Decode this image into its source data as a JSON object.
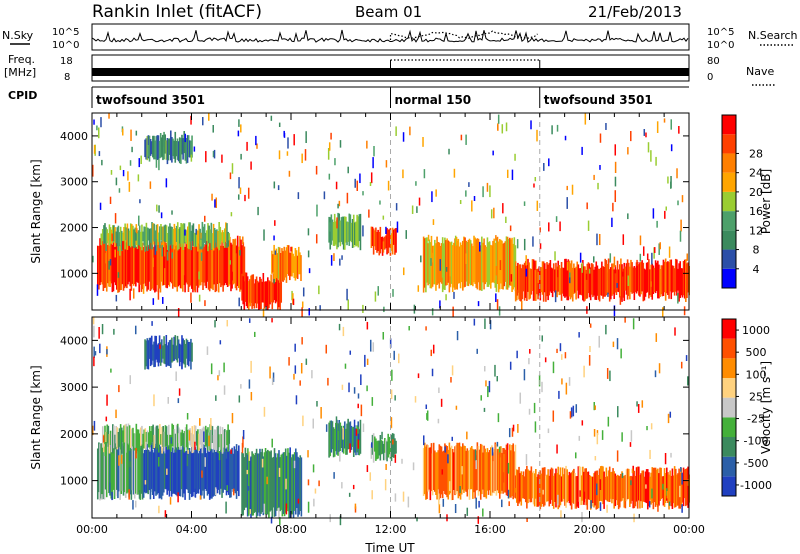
{
  "header": {
    "title": "Rankin Inlet (fitACF)",
    "beam": "Beam 01",
    "date": "21/Feb/2013"
  },
  "top_panels": {
    "nsky_label": "N.Sky",
    "nsearch_label": "N.Search",
    "noise_ticks": [
      "10^5",
      "10^0"
    ],
    "freq_label_1": "Freq.",
    "freq_label_2": "[MHz]",
    "freq_ticks": [
      "18",
      "8"
    ],
    "nave_label": "Nave",
    "nave_ticks": [
      "80",
      "0"
    ],
    "cpid_label": "CPID",
    "cpid_segments": [
      {
        "label": "twofsound 3501",
        "start": 0,
        "end": 12
      },
      {
        "label": "normal 150",
        "start": 12,
        "end": 18
      },
      {
        "label": "twofsound 3501",
        "start": 18,
        "end": 24
      }
    ]
  },
  "colors": {
    "power_scale": [
      "#0000ff",
      "#2b4fa8",
      "#3b8a5e",
      "#4da06a",
      "#9acd32",
      "#ffa500",
      "#ff7f00",
      "#ff4000",
      "#ff0000"
    ],
    "velocity_scale": [
      "#2040c0",
      "#2b5fa8",
      "#3b8a5e",
      "#44b03a",
      "#c8c8c8",
      "#ffd27f",
      "#ff8c00",
      "#ff5000",
      "#ff0000"
    ]
  },
  "chart_data": [
    {
      "type": "heatmap",
      "name": "power",
      "ylabel": "Slant Range [km]",
      "y_ticks": [
        "1000",
        "2000",
        "3000",
        "4000"
      ],
      "ylim": [
        200,
        4500
      ],
      "xlim": [
        0,
        24
      ],
      "colorbar_label": "Power [dB]",
      "colorbar_ticks": [
        "4",
        "8",
        "12",
        "16",
        "20",
        "24",
        "28"
      ],
      "regions": [
        {
          "t0": 0.2,
          "t1": 6.1,
          "r0": 700,
          "r1": 1700,
          "level": 0.85
        },
        {
          "t0": 0.4,
          "t1": 5.5,
          "r0": 1600,
          "r1": 2000,
          "level": 0.45
        },
        {
          "t0": 6.0,
          "t1": 7.6,
          "r0": 300,
          "r1": 900,
          "level": 0.9
        },
        {
          "t0": 7.2,
          "t1": 8.4,
          "r0": 900,
          "r1": 1500,
          "level": 0.7
        },
        {
          "t0": 9.5,
          "t1": 10.8,
          "r0": 1600,
          "r1": 2200,
          "level": 0.4
        },
        {
          "t0": 11.2,
          "t1": 12.2,
          "r0": 1500,
          "r1": 1900,
          "level": 0.8
        },
        {
          "t0": 13.3,
          "t1": 17.0,
          "r0": 700,
          "r1": 1700,
          "level": 0.65
        },
        {
          "t0": 17.0,
          "t1": 24.0,
          "r0": 500,
          "r1": 1200,
          "level": 0.85
        },
        {
          "t0": 2.1,
          "t1": 4.0,
          "r0": 3500,
          "r1": 4000,
          "level": 0.3
        }
      ]
    },
    {
      "type": "heatmap",
      "name": "velocity",
      "ylabel": "Slant Range [km]",
      "y_ticks": [
        "1000",
        "2000",
        "3000",
        "4000"
      ],
      "ylim": [
        200,
        4500
      ],
      "xlim": [
        0,
        24
      ],
      "xlabel": "Time UT",
      "x_ticks": [
        "00:00",
        "04:00",
        "08:00",
        "12:00",
        "16:00",
        "20:00",
        "00:00"
      ],
      "colorbar_label": "Velocity [m s⁻¹]",
      "colorbar_ticks": [
        "1000",
        "500",
        "100",
        "25",
        "-25",
        "-100",
        "-500",
        "-1000"
      ],
      "regions": [
        {
          "t0": 0.2,
          "t1": 2.0,
          "r0": 700,
          "r1": 1800,
          "level": 0.35
        },
        {
          "t0": 2.0,
          "t1": 5.9,
          "r0": 700,
          "r1": 1700,
          "level": 0.1
        },
        {
          "t0": 0.4,
          "t1": 5.5,
          "r0": 1700,
          "r1": 2100,
          "level": 0.45
        },
        {
          "t0": 6.0,
          "t1": 8.4,
          "r0": 300,
          "r1": 1600,
          "level": 0.25
        },
        {
          "t0": 9.5,
          "t1": 10.8,
          "r0": 1600,
          "r1": 2200,
          "level": 0.3
        },
        {
          "t0": 11.2,
          "t1": 12.2,
          "r0": 1500,
          "r1": 1900,
          "level": 0.35
        },
        {
          "t0": 13.3,
          "t1": 17.0,
          "r0": 700,
          "r1": 1700,
          "level": 0.75
        },
        {
          "t0": 17.0,
          "t1": 24.0,
          "r0": 500,
          "r1": 1200,
          "level": 0.8
        },
        {
          "t0": 2.1,
          "t1": 4.0,
          "r0": 3500,
          "r1": 4000,
          "level": 0.15
        }
      ]
    }
  ]
}
